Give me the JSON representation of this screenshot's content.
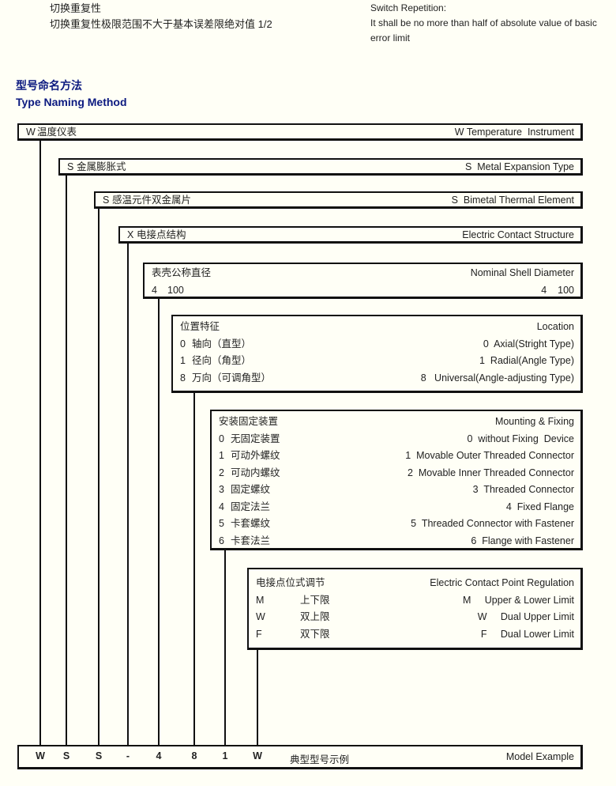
{
  "switch_repetition": {
    "cn_title": "切换重复性",
    "cn_text": "切换重复性极限范围不大于基本误差限绝对值 1/2",
    "en_title": "Switch Repetition:",
    "en_text_1": "It shall be no more than half of absolute value of basic",
    "en_text_2": "error limit"
  },
  "heading": {
    "cn": "型号命名方法",
    "en": "Type Naming Method"
  },
  "boxes": [
    {
      "left": [
        {
          "code": "W",
          "text": "温度仪表"
        }
      ],
      "right": [
        "W Temperature  Instrument"
      ]
    },
    {
      "left": [
        {
          "code": "S",
          "text": "金属膨胀式"
        }
      ],
      "right": [
        "S  Metal Expansion Type"
      ]
    },
    {
      "left": [
        {
          "code": "S",
          "text": "感温元件双金属片"
        }
      ],
      "right": [
        "S  Bimetal Thermal Element"
      ]
    },
    {
      "left": [
        {
          "code": "X",
          "text": "电接点结构"
        }
      ],
      "right": [
        "Electric Contact Structure"
      ]
    },
    {
      "left": [
        {
          "code": "",
          "text": "表壳公称直径"
        },
        {
          "code": "4",
          "text": "100"
        }
      ],
      "right": [
        "Nominal Shell Diameter",
        "4    100"
      ]
    },
    {
      "left": [
        {
          "code": "",
          "text": "位置特征"
        },
        {
          "code": "0",
          "text": "轴向（直型）"
        },
        {
          "code": "1",
          "text": "径向（角型）"
        },
        {
          "code": "8",
          "text": "万向（可调角型）"
        }
      ],
      "right": [
        "Location",
        "0  Axial(Stright Type)",
        "1  Radial(Angle Type)",
        "8   Universal(Angle-adjusting Type)"
      ]
    },
    {
      "left": [
        {
          "code": "",
          "text": "安装固定装置"
        },
        {
          "code": "0",
          "text": "无固定装置"
        },
        {
          "code": "1",
          "text": "可动外螺纹"
        },
        {
          "code": "2",
          "text": "可动内螺纹"
        },
        {
          "code": "3",
          "text": "固定螺纹"
        },
        {
          "code": "4",
          "text": "固定法兰"
        },
        {
          "code": "5",
          "text": "卡套螺纹"
        },
        {
          "code": "6",
          "text": "卡套法兰"
        }
      ],
      "right": [
        "Mounting & Fixing",
        "0  without Fixing  Device",
        "1  Movable Outer Threaded Connector",
        "2  Movable Inner Threaded Connector",
        "3  Threaded Connector",
        "4  Fixed Flange",
        "5  Threaded Connector with Fastener",
        "6  Flange with Fastener"
      ]
    },
    {
      "left": [
        {
          "code": "",
          "text": "电接点位式调节"
        },
        {
          "code": "M",
          "text": "上下限"
        },
        {
          "code": "W",
          "text": "双上限"
        },
        {
          "code": "F",
          "text": "双下限"
        }
      ],
      "right": [
        "Electric Contact Point Regulation",
        "M     Upper & Lower Limit",
        "W     Dual Upper Limit",
        "F     Dual Lower Limit"
      ]
    }
  ],
  "model_example": {
    "codes": [
      "W",
      "S",
      "S",
      "-",
      "4",
      "8",
      "1",
      "W"
    ],
    "cn_label": "典型型号示例",
    "en_label": "Model Example"
  }
}
